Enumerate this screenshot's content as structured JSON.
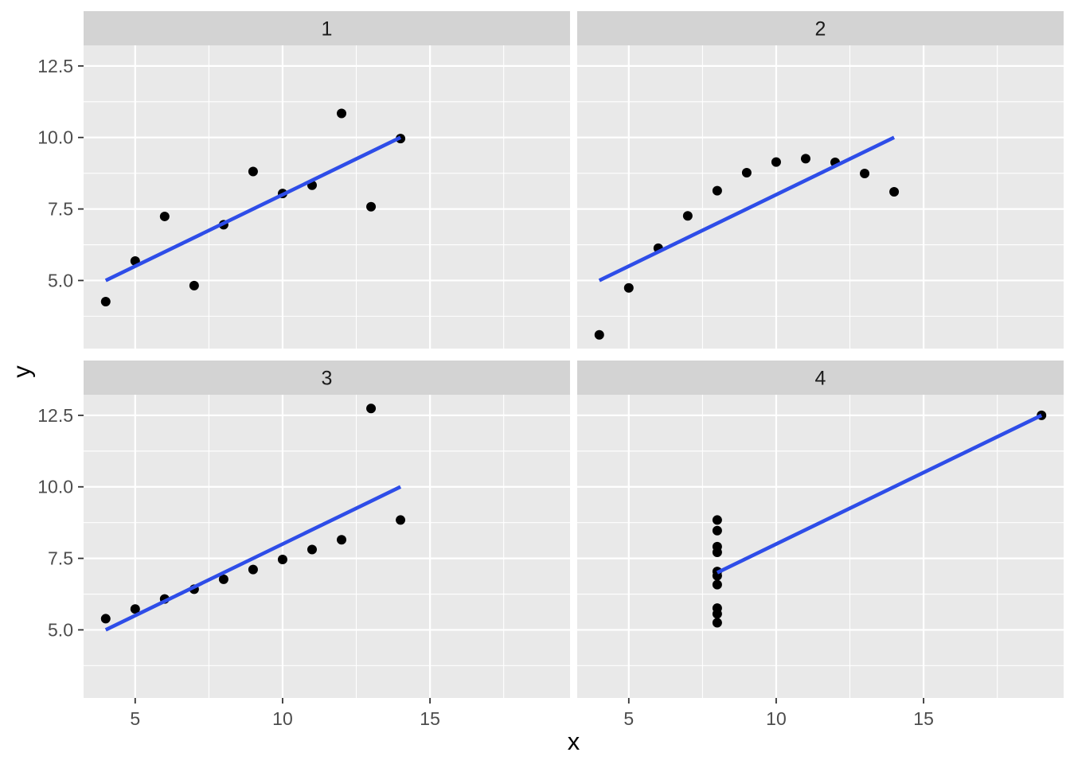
{
  "chart_data": {
    "type": "scatter",
    "title": "",
    "xlabel": "x",
    "ylabel": "y",
    "facet_labels": [
      "1",
      "2",
      "3",
      "4"
    ],
    "xlim": [
      3.25,
      19.75
    ],
    "ylim": [
      2.62,
      13.22
    ],
    "x_major_ticks": [
      5,
      10,
      15
    ],
    "x_tick_labels": [
      "5",
      "10",
      "15"
    ],
    "x_minor_ticks": [
      7.5,
      12.5,
      17.5
    ],
    "y_major_ticks": [
      5.0,
      7.5,
      10.0,
      12.5
    ],
    "y_tick_labels": [
      "5.0",
      "7.5",
      "10.0",
      "12.5"
    ],
    "y_minor_ticks": [
      3.75,
      6.25,
      8.75,
      11.25
    ],
    "grid": "on",
    "legend": "none",
    "facets": [
      {
        "label": "1",
        "points": [
          [
            10,
            8.04
          ],
          [
            8,
            6.95
          ],
          [
            13,
            7.58
          ],
          [
            9,
            8.81
          ],
          [
            11,
            8.33
          ],
          [
            14,
            9.96
          ],
          [
            6,
            7.24
          ],
          [
            4,
            4.26
          ],
          [
            12,
            10.84
          ],
          [
            7,
            4.82
          ],
          [
            5,
            5.68
          ]
        ],
        "regression_line": {
          "x1": 4,
          "y1": 5.0,
          "x2": 14,
          "y2": 10.0
        }
      },
      {
        "label": "2",
        "points": [
          [
            10,
            9.14
          ],
          [
            8,
            8.14
          ],
          [
            13,
            8.74
          ],
          [
            9,
            8.77
          ],
          [
            11,
            9.26
          ],
          [
            14,
            8.1
          ],
          [
            6,
            6.13
          ],
          [
            4,
            3.1
          ],
          [
            12,
            9.13
          ],
          [
            7,
            7.26
          ],
          [
            5,
            4.74
          ]
        ],
        "regression_line": {
          "x1": 4,
          "y1": 5.0,
          "x2": 14,
          "y2": 10.0
        }
      },
      {
        "label": "3",
        "points": [
          [
            10,
            7.46
          ],
          [
            8,
            6.77
          ],
          [
            13,
            12.74
          ],
          [
            9,
            7.11
          ],
          [
            11,
            7.81
          ],
          [
            14,
            8.84
          ],
          [
            6,
            6.08
          ],
          [
            4,
            5.39
          ],
          [
            12,
            8.15
          ],
          [
            7,
            6.42
          ],
          [
            5,
            5.73
          ]
        ],
        "regression_line": {
          "x1": 4,
          "y1": 5.0,
          "x2": 14,
          "y2": 10.0
        }
      },
      {
        "label": "4",
        "points": [
          [
            8,
            6.58
          ],
          [
            8,
            5.76
          ],
          [
            8,
            7.71
          ],
          [
            8,
            8.84
          ],
          [
            8,
            8.47
          ],
          [
            8,
            7.04
          ],
          [
            8,
            5.25
          ],
          [
            19,
            12.5
          ],
          [
            8,
            5.56
          ],
          [
            8,
            7.91
          ],
          [
            8,
            6.89
          ]
        ],
        "regression_line": {
          "x1": 8,
          "y1": 7.0,
          "x2": 19,
          "y2": 12.5
        }
      }
    ],
    "colors": {
      "figure_background": "#FFFFFF",
      "panel_background": "#E9E9E9",
      "strip_background": "#D3D3D3",
      "grid_major": "#FFFFFF",
      "grid_minor": "#FFFFFF",
      "point": "#000000",
      "smooth_line": "#2E4DE8",
      "tick_mark": "#333333",
      "tick_label": "#4D4D4D",
      "strip_label": "#1A1A1A",
      "axis_title": "#000000"
    }
  }
}
